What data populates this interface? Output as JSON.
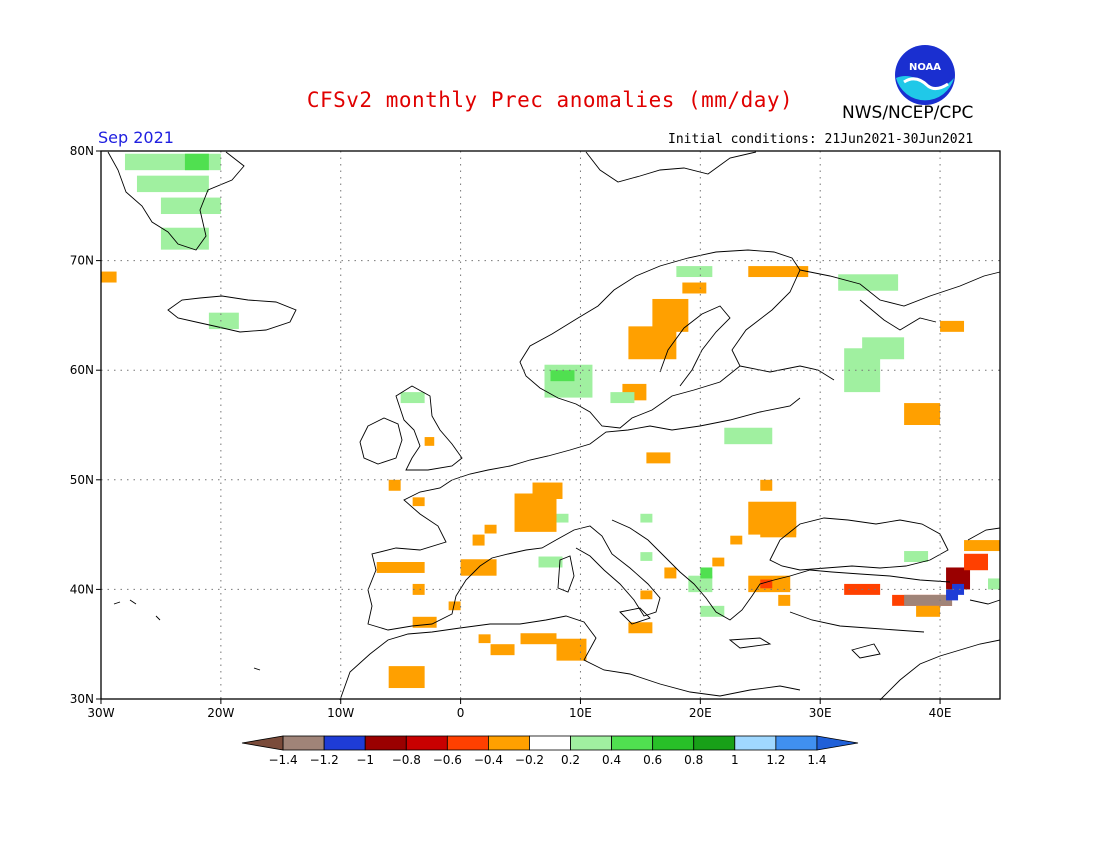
{
  "header": {
    "title": "CFSv2 monthly Prec anomalies (mm/day)",
    "agency": "NWS/NCEP/CPC",
    "logo_text": "NOAA",
    "valid_month": "Sep 2021",
    "initial_conditions": "Initial conditions: 21Jun2021-30Jun2021"
  },
  "map": {
    "lon_range": [
      -30,
      45
    ],
    "lat_range": [
      30,
      80
    ],
    "lon_ticks": [
      {
        "lon": -30,
        "label": "30W"
      },
      {
        "lon": -20,
        "label": "20W"
      },
      {
        "lon": -10,
        "label": "10W"
      },
      {
        "lon": 0,
        "label": "0"
      },
      {
        "lon": 10,
        "label": "10E"
      },
      {
        "lon": 20,
        "label": "20E"
      },
      {
        "lon": 30,
        "label": "30E"
      },
      {
        "lon": 40,
        "label": "40E"
      }
    ],
    "lat_ticks": [
      {
        "lat": 30,
        "label": "30N"
      },
      {
        "lat": 40,
        "label": "40N"
      },
      {
        "lat": 50,
        "label": "50N"
      },
      {
        "lat": 60,
        "label": "60N"
      },
      {
        "lat": 70,
        "label": "70N"
      },
      {
        "lat": 80,
        "label": "80N"
      }
    ],
    "grid": "dotted",
    "anomaly_cells": [
      {
        "lon": -28,
        "lat": 79,
        "w": 8,
        "h": 1.5,
        "value": 0.3
      },
      {
        "lon": -23,
        "lat": 79,
        "w": 2,
        "h": 1.5,
        "value": 0.5
      },
      {
        "lon": -27,
        "lat": 77,
        "w": 6,
        "h": 1.5,
        "value": 0.3
      },
      {
        "lon": -25,
        "lat": 75,
        "w": 5,
        "h": 1.5,
        "value": 0.3
      },
      {
        "lon": -25,
        "lat": 72,
        "w": 4,
        "h": 2,
        "value": 0.3
      },
      {
        "lon": -30,
        "lat": 68.5,
        "w": 1.3,
        "h": 1,
        "value": -0.3
      },
      {
        "lon": -21,
        "lat": 64.5,
        "w": 2.5,
        "h": 1.5,
        "value": 0.3
      },
      {
        "lon": -5,
        "lat": 57.5,
        "w": 2,
        "h": 1,
        "value": 0.3
      },
      {
        "lon": -3,
        "lat": 53.5,
        "w": 0.8,
        "h": 0.8,
        "value": -0.3
      },
      {
        "lon": -6,
        "lat": 49.5,
        "w": 1,
        "h": 1,
        "value": -0.3
      },
      {
        "lon": -4,
        "lat": 48,
        "w": 1,
        "h": 0.8,
        "value": -0.3
      },
      {
        "lon": 4.5,
        "lat": 47,
        "w": 3.5,
        "h": 3.5,
        "value": -0.3
      },
      {
        "lon": 6,
        "lat": 49,
        "w": 2.5,
        "h": 1.5,
        "value": -0.3
      },
      {
        "lon": 1,
        "lat": 44.5,
        "w": 1,
        "h": 1,
        "value": -0.3
      },
      {
        "lon": 2,
        "lat": 45.5,
        "w": 1,
        "h": 0.8,
        "value": -0.3
      },
      {
        "lon": -7,
        "lat": 42,
        "w": 4,
        "h": 1,
        "value": -0.3
      },
      {
        "lon": 0,
        "lat": 42,
        "w": 3,
        "h": 1.5,
        "value": -0.3
      },
      {
        "lon": -4,
        "lat": 40,
        "w": 1,
        "h": 1,
        "value": -0.3
      },
      {
        "lon": -4,
        "lat": 37,
        "w": 2,
        "h": 1,
        "value": -0.3
      },
      {
        "lon": -1,
        "lat": 38.5,
        "w": 1,
        "h": 0.8,
        "value": -0.3
      },
      {
        "lon": -6,
        "lat": 32,
        "w": 3,
        "h": 2,
        "value": -0.3
      },
      {
        "lon": 1.5,
        "lat": 35.5,
        "w": 1,
        "h": 0.8,
        "value": -0.3
      },
      {
        "lon": 2.5,
        "lat": 34.5,
        "w": 2,
        "h": 1,
        "value": -0.3
      },
      {
        "lon": 5,
        "lat": 35.5,
        "w": 3,
        "h": 1,
        "value": -0.3
      },
      {
        "lon": 8,
        "lat": 34.5,
        "w": 2.5,
        "h": 2,
        "value": -0.3
      },
      {
        "lon": 14,
        "lat": 36.5,
        "w": 2,
        "h": 1,
        "value": -0.3
      },
      {
        "lon": 15,
        "lat": 39.5,
        "w": 1,
        "h": 0.8,
        "value": -0.3
      },
      {
        "lon": 8,
        "lat": 46.5,
        "w": 1,
        "h": 0.8,
        "value": 0.3
      },
      {
        "lon": 6.5,
        "lat": 42.5,
        "w": 2,
        "h": 1,
        "value": 0.3
      },
      {
        "lon": 15,
        "lat": 46.5,
        "w": 1,
        "h": 0.8,
        "value": 0.3
      },
      {
        "lon": 15,
        "lat": 43,
        "w": 1,
        "h": 0.8,
        "value": 0.3
      },
      {
        "lon": 17,
        "lat": 41.5,
        "w": 1,
        "h": 1,
        "value": -0.3
      },
      {
        "lon": 19,
        "lat": 40.5,
        "w": 2,
        "h": 1.5,
        "value": 0.3
      },
      {
        "lon": 20,
        "lat": 41.5,
        "w": 1,
        "h": 1,
        "value": 0.5
      },
      {
        "lon": 21,
        "lat": 42.5,
        "w": 1,
        "h": 0.8,
        "value": -0.3
      },
      {
        "lon": 22.5,
        "lat": 44.5,
        "w": 1,
        "h": 0.8,
        "value": -0.3
      },
      {
        "lon": 20,
        "lat": 38,
        "w": 2,
        "h": 1,
        "value": 0.3
      },
      {
        "lon": 24,
        "lat": 40.5,
        "w": 3.5,
        "h": 1.5,
        "value": -0.3
      },
      {
        "lon": 25,
        "lat": 40.5,
        "w": 1,
        "h": 0.8,
        "value": -0.5
      },
      {
        "lon": 26.5,
        "lat": 39,
        "w": 1,
        "h": 1,
        "value": -0.3
      },
      {
        "lon": 24,
        "lat": 46.5,
        "w": 4,
        "h": 3,
        "value": -0.3
      },
      {
        "lon": 25,
        "lat": 45.5,
        "w": 3,
        "h": 1.5,
        "value": -0.3
      },
      {
        "lon": 25,
        "lat": 49.5,
        "w": 1,
        "h": 1,
        "value": -0.3
      },
      {
        "lon": 15.5,
        "lat": 52,
        "w": 2,
        "h": 1,
        "value": -0.3
      },
      {
        "lon": 22,
        "lat": 54,
        "w": 4,
        "h": 1.5,
        "value": 0.3
      },
      {
        "lon": 13.5,
        "lat": 58,
        "w": 2,
        "h": 1.5,
        "value": -0.3
      },
      {
        "lon": 12.5,
        "lat": 57.5,
        "w": 2,
        "h": 1,
        "value": 0.3
      },
      {
        "lon": 14,
        "lat": 62.5,
        "w": 4,
        "h": 3,
        "value": -0.3
      },
      {
        "lon": 16,
        "lat": 65,
        "w": 3,
        "h": 3,
        "value": -0.3
      },
      {
        "lon": 18.5,
        "lat": 67.5,
        "w": 2,
        "h": 1,
        "value": -0.3
      },
      {
        "lon": 24,
        "lat": 69,
        "w": 5,
        "h": 1,
        "value": -0.3
      },
      {
        "lon": 7,
        "lat": 59,
        "w": 4,
        "h": 3,
        "value": 0.3
      },
      {
        "lon": 7.5,
        "lat": 59.5,
        "w": 2,
        "h": 1,
        "value": 0.5
      },
      {
        "lon": 18,
        "lat": 69,
        "w": 3,
        "h": 1,
        "value": 0.3
      },
      {
        "lon": 31.5,
        "lat": 68,
        "w": 5,
        "h": 1.5,
        "value": 0.3
      },
      {
        "lon": 32,
        "lat": 60,
        "w": 3,
        "h": 4,
        "value": 0.3
      },
      {
        "lon": 33.5,
        "lat": 62,
        "w": 3.5,
        "h": 2,
        "value": 0.3
      },
      {
        "lon": 40,
        "lat": 64,
        "w": 2,
        "h": 1,
        "value": -0.3
      },
      {
        "lon": 37,
        "lat": 56,
        "w": 3,
        "h": 2,
        "value": -0.3
      },
      {
        "lon": 32,
        "lat": 40,
        "w": 3,
        "h": 1,
        "value": -0.5
      },
      {
        "lon": 36,
        "lat": 39,
        "w": 5,
        "h": 1,
        "value": -0.5
      },
      {
        "lon": 37,
        "lat": 39,
        "w": 4,
        "h": 1,
        "value": -1.3
      },
      {
        "lon": 38,
        "lat": 38,
        "w": 2,
        "h": 1,
        "value": -0.3
      },
      {
        "lon": 40.5,
        "lat": 41,
        "w": 2,
        "h": 2,
        "value": -0.9
      },
      {
        "lon": 40.5,
        "lat": 39.5,
        "w": 1,
        "h": 1,
        "value": -1.1
      },
      {
        "lon": 41,
        "lat": 40,
        "w": 1,
        "h": 1,
        "value": -1.1
      },
      {
        "lon": 42,
        "lat": 42.5,
        "w": 2,
        "h": 1.5,
        "value": -0.5
      },
      {
        "lon": 42,
        "lat": 44,
        "w": 3,
        "h": 1,
        "value": -0.3
      },
      {
        "lon": 37,
        "lat": 43,
        "w": 2,
        "h": 1,
        "value": 0.3
      },
      {
        "lon": 44,
        "lat": 40.5,
        "w": 1,
        "h": 1,
        "value": 0.3
      }
    ]
  },
  "legend": {
    "colors": [
      "#7a4b3a",
      "#a08478",
      "#1e3cd6",
      "#9a0000",
      "#c80000",
      "#ff4000",
      "#ffa000",
      "#ffffff",
      "#a0f0a0",
      "#50e050",
      "#28c028",
      "#18a018",
      "#a0d8ff",
      "#4090f0",
      "#2060d8"
    ],
    "labels": [
      "-1.4",
      "-1.2",
      "-1",
      "-0.8",
      "-0.6",
      "-0.4",
      "-0.2",
      "0.2",
      "0.4",
      "0.6",
      "0.8",
      "1",
      "1.2",
      "1.4"
    ]
  }
}
